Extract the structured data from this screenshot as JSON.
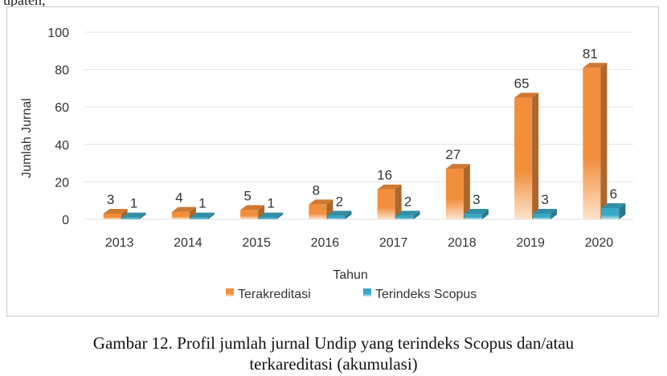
{
  "page": {
    "top_fragment": "upaten,",
    "caption_line1": "Gambar 12. Profil jumlah jurnal Undip yang terindeks Scopus dan/atau",
    "caption_line2": "terkareditasi (akumulasi)"
  },
  "chart_data": {
    "type": "bar",
    "categories": [
      "2013",
      "2014",
      "2015",
      "2016",
      "2017",
      "2018",
      "2019",
      "2020"
    ],
    "series": [
      {
        "name": "Terakreditasi",
        "values": [
          3,
          4,
          5,
          8,
          16,
          27,
          65,
          81
        ],
        "color": "#f28e3c"
      },
      {
        "name": "Terindeks Scopus",
        "values": [
          1,
          1,
          1,
          2,
          2,
          3,
          3,
          6
        ],
        "color": "#3aa7c4"
      }
    ],
    "title": "",
    "xlabel": "Tahun",
    "ylabel": "Jumlah Jurnal",
    "ylim": [
      0,
      100
    ],
    "yticks": [
      "0",
      "20",
      "40",
      "60",
      "80",
      "100"
    ],
    "grid": true,
    "legend": "bottom",
    "style": "3d-column"
  }
}
